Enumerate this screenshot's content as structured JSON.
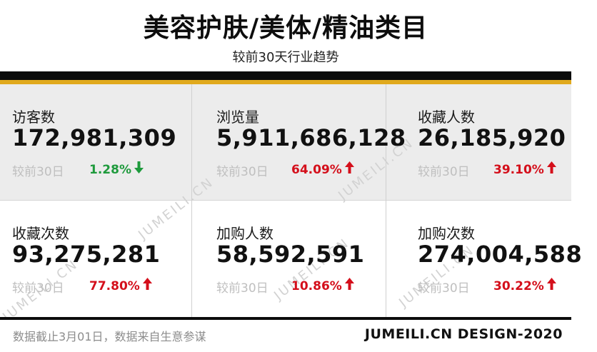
{
  "header": {
    "title": "美容护肤/美体/精油类目",
    "subtitle": "较前30天行业趋势"
  },
  "metrics": [
    {
      "label": "访客数",
      "value": "172,981,309",
      "compare_label": "较前30日",
      "change": "1.28%",
      "direction": "down"
    },
    {
      "label": "浏览量",
      "value": "5,911,686,128",
      "compare_label": "较前30日",
      "change": "64.09%",
      "direction": "up"
    },
    {
      "label": "收藏人数",
      "value": "26,185,920",
      "compare_label": "较前30日",
      "change": "39.10%",
      "direction": "up"
    },
    {
      "label": "收藏次数",
      "value": "93,275,281",
      "compare_label": "较前30日",
      "change": "77.80%",
      "direction": "up"
    },
    {
      "label": "加购人数",
      "value": "58,592,591",
      "compare_label": "较前30日",
      "change": "10.86%",
      "direction": "up"
    },
    {
      "label": "加购次数",
      "value": "274,004,588",
      "compare_label": "较前30日",
      "change": "30.22%",
      "direction": "up"
    }
  ],
  "watermark": "JUMEILI.CN",
  "footer": {
    "note": "数据截止3月01日，数据来自生意参谋",
    "brand": "JUMEILI.CN DESIGN-2020"
  },
  "colors": {
    "up": "#d40f1b",
    "down": "#1e9a3c",
    "accent_band": "#e0a91d",
    "dark_band": "#0c0c0c"
  },
  "icons": {
    "up": "arrow-up-icon",
    "down": "arrow-down-icon"
  }
}
